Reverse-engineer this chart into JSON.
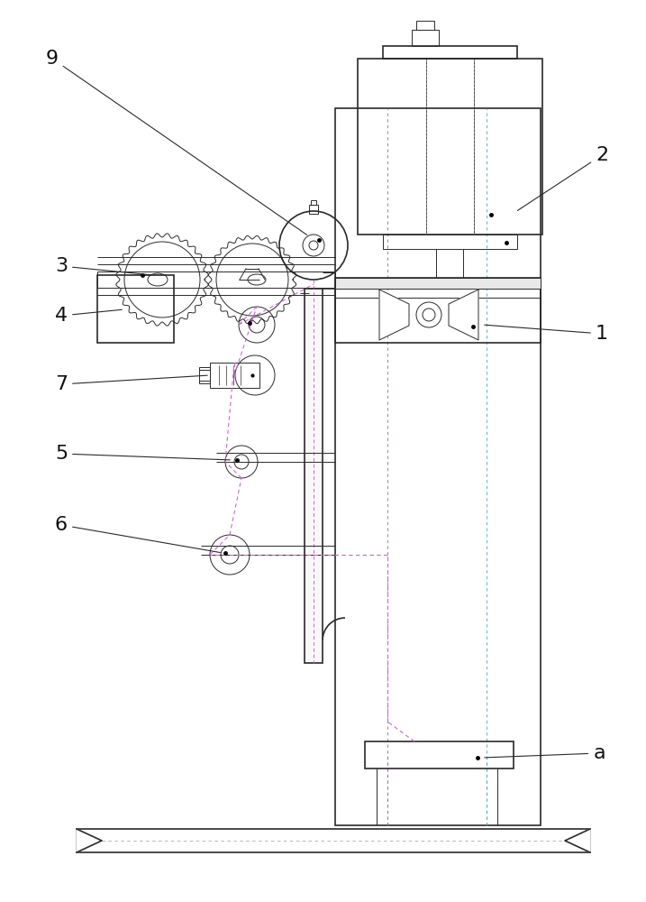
{
  "bg_color": "#ffffff",
  "lc": "#2a2a2a",
  "tl": 0.7,
  "ml": 1.2,
  "thk": 1.8,
  "purple": "#9966aa",
  "cyan": "#44aaaa",
  "magenta": "#cc66cc",
  "gray_dash": "#999999"
}
